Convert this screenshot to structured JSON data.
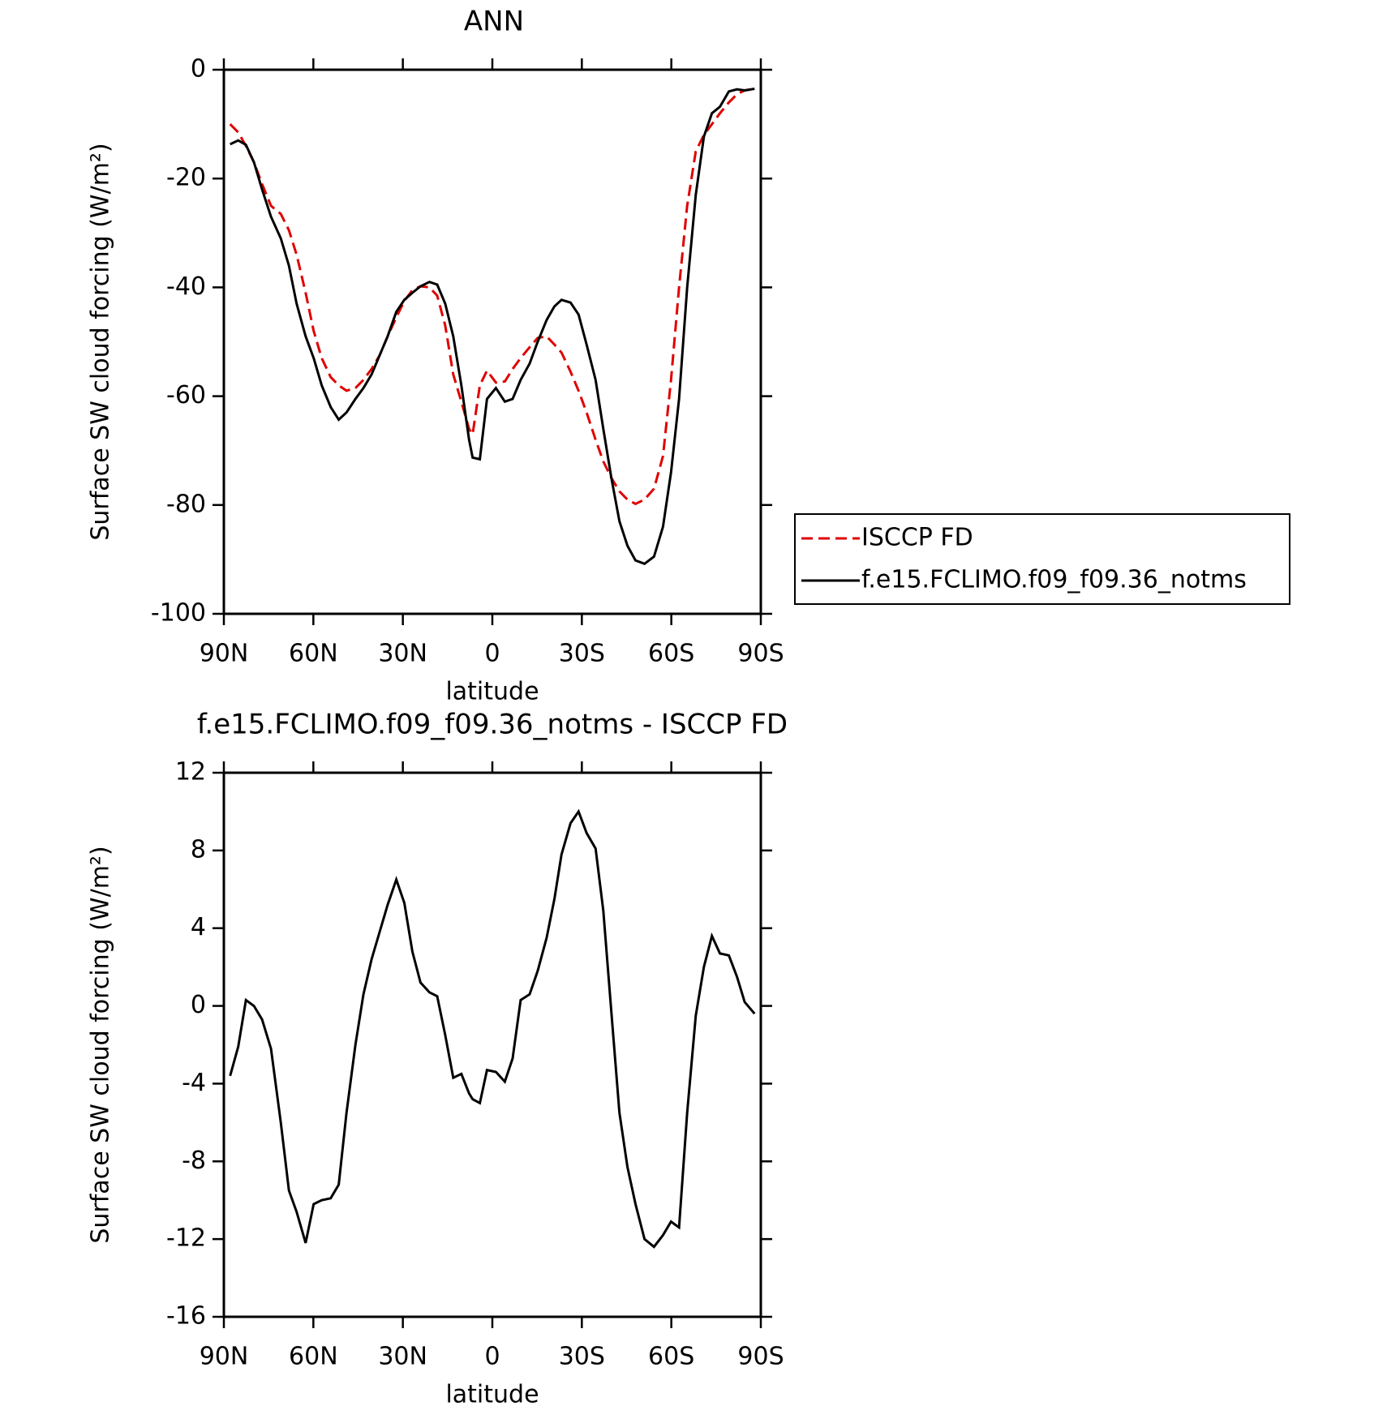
{
  "chart_data": [
    {
      "type": "line",
      "title": "ANN",
      "x_label": "latitude",
      "y_label": "Surface SW cloud forcing (W/m²)",
      "x": [
        87.9,
        85.2,
        82.6,
        79.9,
        77.2,
        74.2,
        70.9,
        68.2,
        65.6,
        62.6,
        59.9,
        57.2,
        54.2,
        51.5,
        48.9,
        45.9,
        43.2,
        40.5,
        37.8,
        35.1,
        32.2,
        29.5,
        26.8,
        24.1,
        21.1,
        18.5,
        15.8,
        13.1,
        10.4,
        7.8,
        6.6,
        4.2,
        1.8,
        -1.2,
        -4.2,
        -6.8,
        -9.5,
        -12.5,
        -15.2,
        -18.2,
        -20.8,
        -23.2,
        -26.2,
        -28.9,
        -31.6,
        -34.6,
        -37.2,
        -39.9,
        -42.6,
        -45.3,
        -48,
        -51,
        -54.2,
        -57.2,
        -59.9,
        -62.6,
        -65.3,
        -68.2,
        -70.9,
        -73.6,
        -76.3,
        -79.3,
        -82,
        -84.6,
        -87.9
      ],
      "series": [
        {
          "name": "ISCCP FD",
          "color": "#e00000",
          "dash": true,
          "values": [
            -10,
            -11.5,
            -14,
            -17,
            -21,
            -25,
            -26.5,
            -29.5,
            -34,
            -41,
            -48,
            -53,
            -56.5,
            -58,
            -59,
            -58.5,
            -57,
            -55,
            -52.5,
            -49,
            -45.5,
            -42.5,
            -40.5,
            -39.8,
            -40,
            -41.5,
            -47,
            -56,
            -61,
            -66,
            -67,
            -58,
            -55.3,
            -57.5,
            -57.3,
            -55,
            -53,
            -51,
            -49.3,
            -49,
            -50.5,
            -52,
            -55.5,
            -59,
            -63,
            -68,
            -72,
            -75,
            -77.5,
            -79,
            -79.8,
            -79,
            -77,
            -71,
            -57,
            -40,
            -25,
            -15,
            -12,
            -10,
            -8,
            -6,
            -4.5,
            -3.8,
            -3.5
          ]
        },
        {
          "name": "f.e15.FCLIMO.f09_f09.36_notms",
          "color": "#000000",
          "dash": false,
          "values": [
            -13.7,
            -13,
            -13.8,
            -17,
            -22,
            -27,
            -31,
            -36,
            -43,
            -49,
            -53,
            -58,
            -62,
            -64.3,
            -63,
            -60.5,
            -58.5,
            -56,
            -52.5,
            -49,
            -44.5,
            -42.3,
            -41,
            -39.8,
            -39,
            -39.5,
            -43,
            -49,
            -58,
            -68,
            -71.3,
            -71.6,
            -60.5,
            -58.5,
            -61,
            -60.5,
            -57,
            -54,
            -50,
            -46,
            -43.5,
            -42.3,
            -42.8,
            -45,
            -50.5,
            -57,
            -66,
            -75,
            -83,
            -87.5,
            -90.2,
            -90.8,
            -89.5,
            -84,
            -74,
            -60.5,
            -40,
            -23,
            -12.3,
            -8,
            -6.8,
            -4,
            -3.6,
            -3.8,
            -3.5
          ]
        }
      ],
      "xlim": [
        90,
        -90
      ],
      "xticks": [
        {
          "value": 90,
          "label": "90N"
        },
        {
          "value": 60,
          "label": "60N"
        },
        {
          "value": 30,
          "label": "30N"
        },
        0,
        {
          "value": -30,
          "label": "30S"
        },
        {
          "value": -60,
          "label": "60S"
        },
        {
          "value": -90,
          "label": "90S"
        }
      ],
      "ylim": [
        -100,
        0
      ],
      "yticks": [
        -100,
        -80,
        -60,
        -40,
        -20,
        0
      ],
      "legend": "right"
    },
    {
      "type": "line",
      "title": "f.e15.FCLIMO.f09_f09.36_notms - ISCCP FD",
      "x_label": "latitude",
      "y_label": "Surface SW cloud forcing (W/m²)",
      "x": [
        87.9,
        85.2,
        82.6,
        79.9,
        77.2,
        74.2,
        70.9,
        68.2,
        65.6,
        62.6,
        59.9,
        57.2,
        54.2,
        51.5,
        48.9,
        45.9,
        43.2,
        40.5,
        37.8,
        35.1,
        32.2,
        29.5,
        26.8,
        24.1,
        21.1,
        18.5,
        15.8,
        13.1,
        10.4,
        7.8,
        6.6,
        4.2,
        1.8,
        -1.2,
        -4.2,
        -6.8,
        -9.5,
        -12.5,
        -15.2,
        -18.2,
        -20.8,
        -23.2,
        -26.2,
        -28.9,
        -31.6,
        -34.6,
        -37.2,
        -39.9,
        -42.6,
        -45.3,
        -48,
        -51,
        -54.2,
        -57.2,
        -59.9,
        -62.6,
        -65.3,
        -68.2,
        -70.9,
        -73.6,
        -76.3,
        -79.3,
        -82,
        -84.6,
        -87.9
      ],
      "series": [
        {
          "color": "#000000",
          "dash": false,
          "values": [
            -3.6,
            -2.1,
            0.3,
            0,
            -0.7,
            -2.2,
            -6,
            -9.5,
            -10.6,
            -12.2,
            -10.2,
            -10,
            -9.9,
            -9.2,
            -5.5,
            -2,
            0.6,
            2.4,
            3.8,
            5.2,
            6.5,
            5.3,
            2.8,
            1.2,
            0.7,
            0.5,
            -1.5,
            -3.7,
            -3.5,
            -4.5,
            -4.8,
            -5,
            -3.3,
            -3.4,
            -3.9,
            -2.7,
            0.3,
            0.6,
            1.8,
            3.5,
            5.5,
            7.8,
            9.4,
            10,
            8.9,
            8.1,
            4.9,
            -0.3,
            -5.5,
            -8.3,
            -10.2,
            -12,
            -12.4,
            -11.8,
            -11.1,
            -11.4,
            -5.5,
            -0.5,
            2,
            3.6,
            2.7,
            2.6,
            1.5,
            0.2,
            -0.4
          ]
        }
      ],
      "xlim": [
        90,
        -90
      ],
      "xticks": [
        {
          "value": 90,
          "label": "90N"
        },
        {
          "value": 60,
          "label": "60N"
        },
        {
          "value": 30,
          "label": "30N"
        },
        0,
        {
          "value": -30,
          "label": "30S"
        },
        {
          "value": -60,
          "label": "60S"
        },
        {
          "value": -90,
          "label": "90S"
        }
      ],
      "ylim": [
        -16,
        12
      ],
      "yticks": [
        -16,
        -12,
        -8,
        -4,
        0,
        4,
        8,
        12
      ]
    }
  ]
}
